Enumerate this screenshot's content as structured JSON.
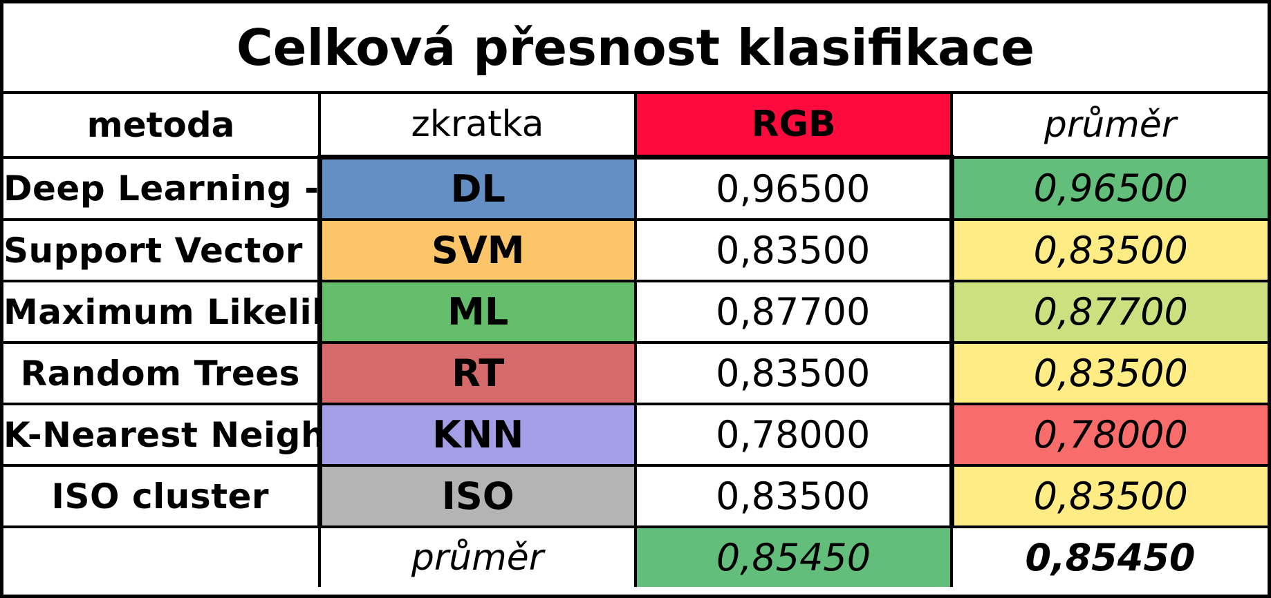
{
  "title": "Celková přesnost klasifikace",
  "header": {
    "method": "metoda",
    "abbr": "zkratka",
    "rgb": "RGB",
    "avg": "průměr",
    "rgb_color": "#ff0a3c"
  },
  "rows": [
    {
      "method": "Deep Learning - UNET",
      "abbr": "DL",
      "rgb": "0,96500",
      "avg": "0,96500",
      "abbr_color": "#648fc4",
      "avg_color": "#63bd7b"
    },
    {
      "method": "Support Vector Machine",
      "abbr": "SVM",
      "rgb": "0,83500",
      "avg": "0,83500",
      "abbr_color": "#fcc569",
      "avg_color": "#ffec84"
    },
    {
      "method": "Maximum Likelihood",
      "abbr": "ML",
      "rgb": "0,87700",
      "avg": "0,87700",
      "abbr_color": "#63bd6b",
      "avg_color": "#cce07f"
    },
    {
      "method": "Random Trees",
      "abbr": "RT",
      "rgb": "0,83500",
      "avg": "0,83500",
      "abbr_color": "#d46a6a",
      "avg_color": "#ffec84"
    },
    {
      "method": "K-Nearest Neighbors",
      "abbr": "KNN",
      "rgb": "0,78000",
      "avg": "0,78000",
      "abbr_color": "#a49ee6",
      "avg_color": "#f86c6b"
    },
    {
      "method": "ISO cluster",
      "abbr": "ISO",
      "rgb": "0,83500",
      "avg": "0,83500",
      "abbr_color": "#b4b4b4",
      "avg_color": "#ffec84"
    }
  ],
  "footer": {
    "label": "průměr",
    "rgb_avg": "0,85450",
    "total_avg": "0,85450",
    "rgb_avg_color": "#63bd7b"
  }
}
